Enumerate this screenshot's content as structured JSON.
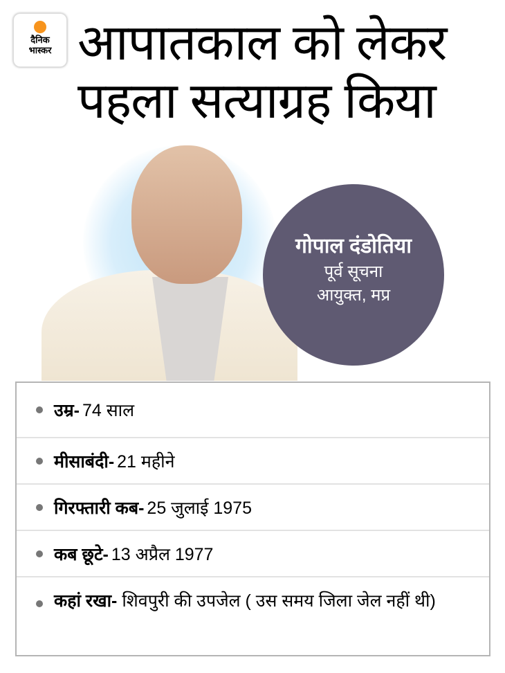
{
  "logo": {
    "line1": "दैनिक",
    "line2": "भास्कर",
    "sun_color": "#f7941d"
  },
  "title": {
    "line1": "आपातकाल को लेकर",
    "line2": "पहला सत्याग्रह किया"
  },
  "person": {
    "name": "गोपाल दंडोतिया",
    "designation_line1": "पूर्व सूचना",
    "designation_line2": "आयुक्त, मप्र",
    "circle_color": "#5f5a72"
  },
  "facts": [
    {
      "label": "उम्र-",
      "value": "74 साल"
    },
    {
      "label": "मीसाबंदी-",
      "value": "21 महीने"
    },
    {
      "label": "गिरफ्तारी कब-",
      "value": "25 जुलाई 1975"
    },
    {
      "label": "कब छूटे-",
      "value": "13 अप्रैल 1977"
    },
    {
      "label": "कहां रखा-",
      "value": "शिवपुरी की उपजेल ( उस समय जिला जेल नहीं थी)"
    }
  ]
}
